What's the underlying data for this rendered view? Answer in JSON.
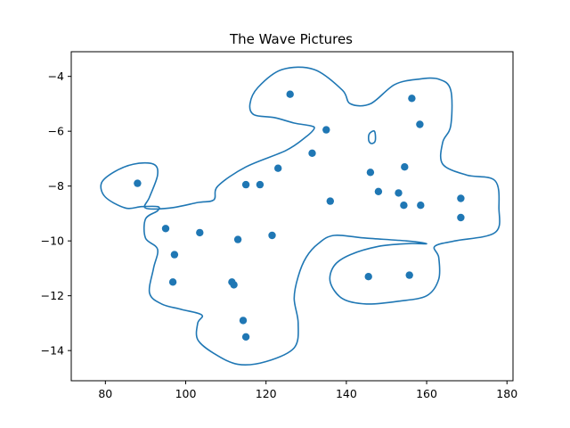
{
  "chart_data": {
    "type": "scatter",
    "title": "The Wave Pictures",
    "xlabel": "",
    "ylabel": "",
    "xlim": [
      71.5,
      181.5
    ],
    "ylim": [
      -15.1,
      -3.1
    ],
    "x_ticks": [
      80,
      100,
      120,
      140,
      160,
      180
    ],
    "y_ticks": [
      -4,
      -6,
      -8,
      -10,
      -12,
      -14
    ],
    "grid": false,
    "color": "#1f77b4",
    "points": [
      {
        "x": 88.0,
        "y": -7.9
      },
      {
        "x": 95.0,
        "y": -9.55
      },
      {
        "x": 97.2,
        "y": -10.5
      },
      {
        "x": 96.8,
        "y": -11.5
      },
      {
        "x": 103.5,
        "y": -9.7
      },
      {
        "x": 111.5,
        "y": -11.5
      },
      {
        "x": 112.0,
        "y": -11.6
      },
      {
        "x": 113.0,
        "y": -9.95
      },
      {
        "x": 114.3,
        "y": -12.9
      },
      {
        "x": 115.0,
        "y": -13.5
      },
      {
        "x": 115.0,
        "y": -7.95
      },
      {
        "x": 118.5,
        "y": -7.95
      },
      {
        "x": 121.5,
        "y": -9.8
      },
      {
        "x": 123.0,
        "y": -7.35
      },
      {
        "x": 126.0,
        "y": -4.65
      },
      {
        "x": 131.5,
        "y": -6.8
      },
      {
        "x": 135.0,
        "y": -5.95
      },
      {
        "x": 136.0,
        "y": -8.55
      },
      {
        "x": 145.5,
        "y": -11.3
      },
      {
        "x": 146.0,
        "y": -7.5
      },
      {
        "x": 148.0,
        "y": -8.2
      },
      {
        "x": 153.0,
        "y": -8.25
      },
      {
        "x": 154.3,
        "y": -8.7
      },
      {
        "x": 154.5,
        "y": -7.3
      },
      {
        "x": 155.7,
        "y": -11.25
      },
      {
        "x": 156.3,
        "y": -4.8
      },
      {
        "x": 158.3,
        "y": -5.75
      },
      {
        "x": 158.5,
        "y": -8.7
      },
      {
        "x": 168.5,
        "y": -8.45
      },
      {
        "x": 168.5,
        "y": -9.15
      }
    ],
    "contours": [
      [
        [
          124,
          -3.75
        ],
        [
          132,
          -3.75
        ],
        [
          139,
          -4.5
        ],
        [
          141,
          -5.0
        ],
        [
          146,
          -5.0
        ],
        [
          152,
          -4.3
        ],
        [
          158,
          -4.1
        ],
        [
          163,
          -4.1
        ],
        [
          166,
          -4.5
        ],
        [
          166,
          -5.8
        ],
        [
          164,
          -6.4
        ],
        [
          164,
          -7.2
        ],
        [
          170,
          -7.6
        ],
        [
          177,
          -7.8
        ],
        [
          178,
          -8.8
        ],
        [
          177,
          -9.7
        ],
        [
          167,
          -10.0
        ],
        [
          162,
          -10.2
        ],
        [
          163,
          -10.6
        ],
        [
          163,
          -11.4
        ],
        [
          160,
          -12.0
        ],
        [
          153,
          -12.2
        ],
        [
          145,
          -12.3
        ],
        [
          139,
          -12.1
        ],
        [
          136,
          -11.5
        ],
        [
          137,
          -10.9
        ],
        [
          141,
          -10.5
        ],
        [
          148,
          -10.2
        ],
        [
          155,
          -10.1
        ],
        [
          160,
          -10.1
        ],
        [
          155,
          -10.0
        ],
        [
          145,
          -9.9
        ],
        [
          137,
          -9.8
        ],
        [
          133,
          -10.1
        ],
        [
          130,
          -10.6
        ],
        [
          128,
          -11.3
        ],
        [
          127,
          -12.1
        ],
        [
          128,
          -13.0
        ],
        [
          127,
          -13.9
        ],
        [
          120,
          -14.4
        ],
        [
          113,
          -14.5
        ],
        [
          107,
          -14.1
        ],
        [
          103,
          -13.6
        ],
        [
          103,
          -13.0
        ],
        [
          104,
          -12.7
        ],
        [
          99,
          -12.5
        ],
        [
          94,
          -12.3
        ],
        [
          91,
          -11.9
        ],
        [
          92,
          -11.0
        ],
        [
          93,
          -10.3
        ],
        [
          90,
          -9.9
        ],
        [
          90,
          -9.2
        ],
        [
          93,
          -8.9
        ],
        [
          93,
          -8.75
        ],
        [
          89,
          -8.75
        ],
        [
          85,
          -8.8
        ],
        [
          80,
          -8.4
        ],
        [
          79,
          -7.9
        ],
        [
          82,
          -7.5
        ],
        [
          87,
          -7.2
        ],
        [
          92,
          -7.2
        ],
        [
          93,
          -7.6
        ],
        [
          91,
          -8.4
        ],
        [
          90,
          -8.8
        ],
        [
          96,
          -8.8
        ],
        [
          103,
          -8.6
        ],
        [
          107,
          -8.5
        ],
        [
          108,
          -8.0
        ],
        [
          115,
          -7.3
        ],
        [
          125,
          -6.7
        ],
        [
          130,
          -6.2
        ],
        [
          132,
          -5.9
        ],
        [
          131,
          -5.8
        ],
        [
          127,
          -5.7
        ],
        [
          122,
          -5.5
        ],
        [
          117,
          -5.4
        ],
        [
          116,
          -5.0
        ],
        [
          118,
          -4.4
        ],
        [
          124,
          -3.75
        ]
      ],
      [
        [
          145.7,
          -6.1
        ],
        [
          147,
          -6.0
        ],
        [
          147.2,
          -6.35
        ],
        [
          146.3,
          -6.45
        ],
        [
          145.6,
          -6.35
        ],
        [
          145.7,
          -6.1
        ]
      ]
    ]
  }
}
